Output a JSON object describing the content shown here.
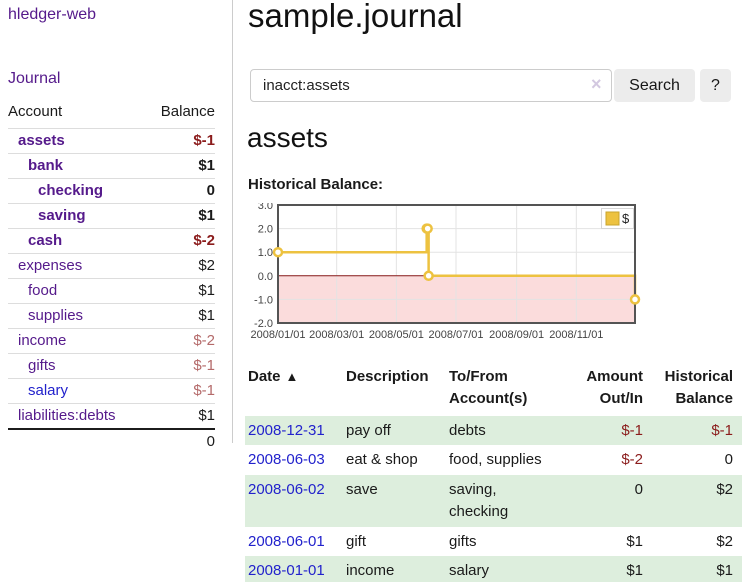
{
  "app": {
    "brand": "hledger-web",
    "nav": {
      "journal": "Journal"
    }
  },
  "sidebar": {
    "header": {
      "account": "Account",
      "balance": "Balance"
    },
    "accounts": [
      {
        "name": "assets",
        "balance": "$-1"
      },
      {
        "name": "bank",
        "balance": "$1"
      },
      {
        "name": "checking",
        "balance": "0"
      },
      {
        "name": "saving",
        "balance": "$1"
      },
      {
        "name": "cash",
        "balance": "$-2"
      },
      {
        "name": "expenses",
        "balance": "$2"
      },
      {
        "name": "food",
        "balance": "$1"
      },
      {
        "name": "supplies",
        "balance": "$1"
      },
      {
        "name": "income",
        "balance": "$-2"
      },
      {
        "name": "gifts",
        "balance": "$-1"
      },
      {
        "name": "salary",
        "balance": "$-1"
      },
      {
        "name": "liabilities:debts",
        "balance": "$1"
      }
    ],
    "total": "0"
  },
  "main": {
    "title": "sample.journal",
    "search": {
      "value": "inacct:assets",
      "clear": "×",
      "search_button": "Search",
      "help_button": "?"
    },
    "account_title": "assets"
  },
  "chart_data": {
    "type": "line",
    "style": "step",
    "title": "Historical Balance:",
    "xlabel": "",
    "ylabel": "",
    "xlim": [
      "2008-01-01",
      "2008-12-31"
    ],
    "ylim": [
      -2,
      3
    ],
    "grid": true,
    "legend_position": "top-right",
    "negative_region_color": "#fbdcdc",
    "zero_line_color": "#8b1a1a",
    "series": [
      {
        "name": "$",
        "color": "#edc240",
        "points": [
          {
            "date": "2008-01-01",
            "value": 1
          },
          {
            "date": "2008-06-01",
            "value": 2
          },
          {
            "date": "2008-06-02",
            "value": 2
          },
          {
            "date": "2008-06-03",
            "value": 0
          },
          {
            "date": "2008-12-31",
            "value": -1
          }
        ]
      }
    ],
    "x_ticks": [
      {
        "date": "2008-01-01",
        "label": "2008/01/01"
      },
      {
        "date": "2008-03-01",
        "label": "2008/03/01"
      },
      {
        "date": "2008-05-01",
        "label": "2008/05/01"
      },
      {
        "date": "2008-07-01",
        "label": "2008/07/01"
      },
      {
        "date": "2008-09-01",
        "label": "2008/09/01"
      },
      {
        "date": "2008-11-01",
        "label": "2008/11/01"
      }
    ],
    "y_ticks": [
      {
        "v": 3,
        "label": "3.0"
      },
      {
        "v": 2,
        "label": "2.0"
      },
      {
        "v": 1,
        "label": "1.0"
      },
      {
        "v": 0,
        "label": "0.0"
      },
      {
        "v": -1,
        "label": "-1.0"
      },
      {
        "v": -2,
        "label": "-2.0"
      }
    ]
  },
  "register": {
    "headers": {
      "date": "Date",
      "sort_icon": "▲",
      "description": "Description",
      "accounts": "To/From Account(s)",
      "amount": "Amount Out/In",
      "balance": "Historical Balance"
    },
    "rows": [
      {
        "date": "2008-12-31",
        "description": "pay off",
        "accounts": "debts",
        "amount": "$-1",
        "balance": "$-1"
      },
      {
        "date": "2008-06-03",
        "description": "eat & shop",
        "accounts": "food, supplies",
        "amount": "$-2",
        "balance": "0"
      },
      {
        "date": "2008-06-02",
        "description": "save",
        "accounts": "saving,\nchecking",
        "amount": "0",
        "balance": "$2"
      },
      {
        "date": "2008-06-01",
        "description": "gift",
        "accounts": "gifts",
        "amount": "$1",
        "balance": "$2"
      },
      {
        "date": "2008-01-01",
        "description": "income",
        "accounts": "salary",
        "amount": "$1",
        "balance": "$1"
      }
    ]
  }
}
